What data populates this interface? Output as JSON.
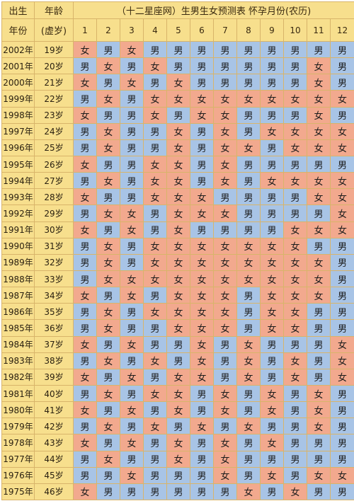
{
  "header": {
    "birth_label": "出生",
    "year_label": "年份",
    "age_label": "年龄",
    "lunar_age_label": "(虚岁)",
    "title": "（十二星座网）生男生女预测表 怀孕月份(农历)",
    "months": [
      "1",
      "2",
      "3",
      "4",
      "5",
      "6",
      "7",
      "8",
      "9",
      "10",
      "11",
      "12"
    ]
  },
  "colors": {
    "boy": "#a8c4e6",
    "girl": "#f2a98e",
    "header": "#f7df8d",
    "grid": "#d8b46a"
  },
  "rows": [
    {
      "year": "2002年",
      "age": "19岁",
      "cells": [
        "女",
        "男",
        "女",
        "男",
        "男",
        "男",
        "男",
        "男",
        "男",
        "男",
        "男",
        "男"
      ]
    },
    {
      "year": "2001年",
      "age": "20岁",
      "cells": [
        "男",
        "女",
        "男",
        "女",
        "男",
        "男",
        "男",
        "男",
        "男",
        "男",
        "女",
        "男"
      ]
    },
    {
      "year": "2000年",
      "age": "21岁",
      "cells": [
        "女",
        "男",
        "女",
        "男",
        "女",
        "男",
        "男",
        "男",
        "男",
        "男",
        "女",
        "男"
      ]
    },
    {
      "year": "1999年",
      "age": "22岁",
      "cells": [
        "男",
        "女",
        "男",
        "女",
        "女",
        "女",
        "女",
        "女",
        "女",
        "女",
        "女",
        "女"
      ]
    },
    {
      "year": "1998年",
      "age": "23岁",
      "cells": [
        "女",
        "男",
        "男",
        "女",
        "男",
        "女",
        "女",
        "男",
        "男",
        "男",
        "女",
        "男"
      ]
    },
    {
      "year": "1997年",
      "age": "24岁",
      "cells": [
        "男",
        "女",
        "男",
        "男",
        "女",
        "男",
        "女",
        "男",
        "女",
        "女",
        "女",
        "女"
      ]
    },
    {
      "year": "1996年",
      "age": "25岁",
      "cells": [
        "男",
        "女",
        "男",
        "男",
        "女",
        "男",
        "女",
        "女",
        "男",
        "女",
        "女",
        "女"
      ]
    },
    {
      "year": "1995年",
      "age": "26岁",
      "cells": [
        "女",
        "男",
        "男",
        "女",
        "女",
        "男",
        "女",
        "男",
        "男",
        "男",
        "男",
        "男"
      ]
    },
    {
      "year": "1994年",
      "age": "27岁",
      "cells": [
        "男",
        "女",
        "男",
        "女",
        "女",
        "男",
        "女",
        "男",
        "女",
        "女",
        "女",
        "女"
      ]
    },
    {
      "year": "1993年",
      "age": "28岁",
      "cells": [
        "女",
        "男",
        "男",
        "女",
        "女",
        "女",
        "男",
        "男",
        "男",
        "男",
        "女",
        "女"
      ]
    },
    {
      "year": "1992年",
      "age": "29岁",
      "cells": [
        "男",
        "女",
        "女",
        "男",
        "女",
        "女",
        "女",
        "男",
        "男",
        "男",
        "男",
        "女"
      ]
    },
    {
      "year": "1991年",
      "age": "30岁",
      "cells": [
        "女",
        "男",
        "女",
        "男",
        "女",
        "男",
        "男",
        "男",
        "男",
        "女",
        "女",
        "女"
      ]
    },
    {
      "year": "1990年",
      "age": "31岁",
      "cells": [
        "男",
        "女",
        "男",
        "女",
        "女",
        "女",
        "女",
        "女",
        "女",
        "女",
        "男",
        "男"
      ]
    },
    {
      "year": "1989年",
      "age": "32岁",
      "cells": [
        "男",
        "女",
        "男",
        "女",
        "女",
        "女",
        "女",
        "女",
        "女",
        "女",
        "女",
        "男"
      ]
    },
    {
      "year": "1988年",
      "age": "33岁",
      "cells": [
        "男",
        "女",
        "女",
        "女",
        "女",
        "女",
        "女",
        "女",
        "女",
        "女",
        "女",
        "男"
      ]
    },
    {
      "year": "1987年",
      "age": "34岁",
      "cells": [
        "女",
        "男",
        "女",
        "男",
        "女",
        "女",
        "女",
        "男",
        "女",
        "女",
        "女",
        "男"
      ]
    },
    {
      "year": "1986年",
      "age": "35岁",
      "cells": [
        "男",
        "女",
        "男",
        "女",
        "女",
        "女",
        "女",
        "男",
        "女",
        "女",
        "男",
        "男"
      ]
    },
    {
      "year": "1985年",
      "age": "36岁",
      "cells": [
        "男",
        "女",
        "男",
        "男",
        "女",
        "女",
        "女",
        "男",
        "女",
        "女",
        "男",
        "男"
      ]
    },
    {
      "year": "1984年",
      "age": "37岁",
      "cells": [
        "女",
        "男",
        "女",
        "男",
        "男",
        "女",
        "男",
        "女",
        "男",
        "男",
        "男",
        "女"
      ]
    },
    {
      "year": "1983年",
      "age": "38岁",
      "cells": [
        "男",
        "女",
        "男",
        "女",
        "男",
        "女",
        "男",
        "女",
        "男",
        "女",
        "男",
        "女"
      ]
    },
    {
      "year": "1982年",
      "age": "39岁",
      "cells": [
        "女",
        "男",
        "女",
        "男",
        "女",
        "女",
        "男",
        "女",
        "男",
        "女",
        "男",
        "女"
      ]
    },
    {
      "year": "1981年",
      "age": "40岁",
      "cells": [
        "男",
        "女",
        "男",
        "女",
        "女",
        "男",
        "女",
        "男",
        "女",
        "男",
        "女",
        "男"
      ]
    },
    {
      "year": "1980年",
      "age": "41岁",
      "cells": [
        "女",
        "男",
        "女",
        "男",
        "女",
        "男",
        "女",
        "男",
        "女",
        "男",
        "女",
        "男"
      ]
    },
    {
      "year": "1979年",
      "age": "42岁",
      "cells": [
        "男",
        "女",
        "男",
        "女",
        "男",
        "女",
        "男",
        "女",
        "男",
        "男",
        "女",
        "男"
      ]
    },
    {
      "year": "1978年",
      "age": "43岁",
      "cells": [
        "女",
        "男",
        "女",
        "男",
        "女",
        "男",
        "女",
        "男",
        "女",
        "男",
        "男",
        "男"
      ]
    },
    {
      "year": "1977年",
      "age": "44岁",
      "cells": [
        "男",
        "女",
        "男",
        "男",
        "女",
        "男",
        "女",
        "男",
        "男",
        "男",
        "男",
        "男"
      ]
    },
    {
      "year": "1976年",
      "age": "45岁",
      "cells": [
        "男",
        "男",
        "女",
        "男",
        "男",
        "男",
        "女",
        "男",
        "女",
        "男",
        "女",
        "女"
      ]
    },
    {
      "year": "1975年",
      "age": "46岁",
      "cells": [
        "女",
        "男",
        "男",
        "男",
        "男",
        "男",
        "男",
        "女",
        "男",
        "女",
        "男",
        "男"
      ]
    }
  ]
}
